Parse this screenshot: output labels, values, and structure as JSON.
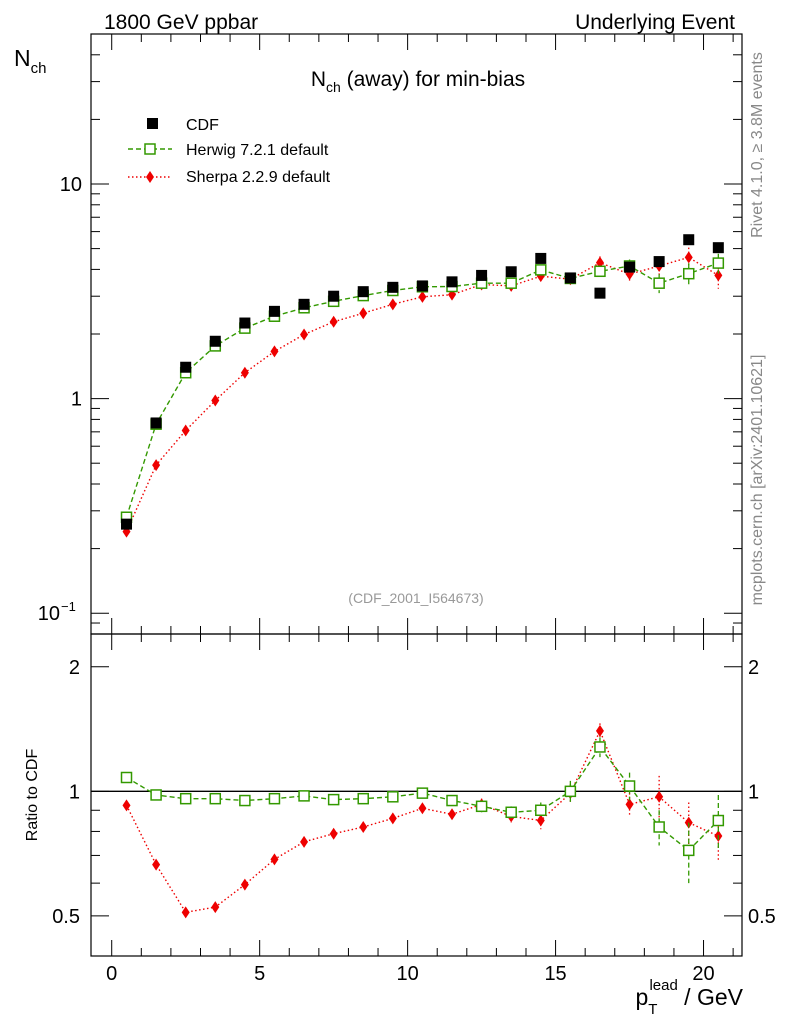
{
  "header": {
    "left": "1800 GeV ppbar",
    "right": "Underlying Event"
  },
  "side_labels": {
    "rivet": "Rivet 4.1.0, ≥ 3.8M events",
    "mcplots": "mcplots.cern.ch [arXiv:2401.10621]"
  },
  "chart_data": [
    {
      "type": "scatter",
      "panel": "main",
      "title_main": "N",
      "title_sub": "ch",
      "title_rest": " (away) for min-bias",
      "ylabel_main": "N",
      "ylabel_sub": "ch",
      "yscale": "log",
      "ylim": [
        0.08,
        50
      ],
      "xlim": [
        -0.7,
        21.3
      ],
      "y_ticks": [
        {
          "v": 10,
          "main": "10",
          "exp": ""
        },
        {
          "v": 1,
          "main": "1",
          "exp": ""
        },
        {
          "v": 0.1,
          "main": "10",
          "exp": "−1"
        }
      ],
      "watermark": "(CDF_2001_I564673)",
      "legend_position": "top-left",
      "x": [
        0.5,
        1.5,
        2.5,
        3.5,
        4.5,
        5.5,
        6.5,
        7.5,
        8.5,
        9.5,
        10.5,
        11.5,
        12.5,
        13.5,
        14.5,
        15.5,
        16.5,
        17.5,
        18.5,
        19.5,
        20.5
      ],
      "series": [
        {
          "name": "CDF",
          "style": "data",
          "color": "#000000",
          "values": [
            0.26,
            0.77,
            1.4,
            1.85,
            2.25,
            2.55,
            2.75,
            3.0,
            3.15,
            3.3,
            3.35,
            3.5,
            3.75,
            3.9,
            4.5,
            3.65,
            3.1,
            4.1,
            4.35,
            5.5,
            5.05
          ]
        },
        {
          "name": "Herwig 7.2.1 default",
          "style": "herwig",
          "color": "#339900",
          "values": [
            0.28,
            0.76,
            1.32,
            1.76,
            2.13,
            2.42,
            2.65,
            2.84,
            3.02,
            3.19,
            3.32,
            3.33,
            3.45,
            3.45,
            3.98,
            3.63,
            3.92,
            4.15,
            3.45,
            3.82,
            4.28
          ],
          "errors": [
            0,
            0,
            0,
            0,
            0,
            0,
            0,
            0,
            0,
            0,
            0,
            0,
            0,
            0,
            0.12,
            0.15,
            0.2,
            0.3,
            0.35,
            0.45,
            0.45
          ]
        },
        {
          "name": "Sherpa 2.2.9 default",
          "style": "sherpa",
          "color": "#ee0000",
          "values": [
            0.24,
            0.49,
            0.71,
            0.98,
            1.32,
            1.66,
            1.99,
            2.28,
            2.5,
            2.75,
            2.98,
            3.05,
            3.4,
            3.35,
            3.72,
            3.6,
            4.3,
            3.8,
            4.15,
            4.55,
            3.75
          ],
          "errors": [
            0,
            0,
            0,
            0,
            0,
            0,
            0,
            0,
            0,
            0,
            0,
            0,
            0.1,
            0.12,
            0.15,
            0.2,
            0.3,
            0.3,
            0.4,
            0.5,
            0.5
          ]
        }
      ]
    },
    {
      "type": "scatter",
      "panel": "ratio",
      "ylabel": "Ratio to CDF",
      "xlabel_main": "p",
      "xlabel_sub": "T",
      "xlabel_sup": "lead",
      "xlabel_rest": " / GeV",
      "yscale": "log",
      "ylim": [
        0.4,
        2.4
      ],
      "xlim": [
        -0.7,
        21.3
      ],
      "reference_line": 1,
      "y_ticks": [
        {
          "v": 2,
          "label": "2"
        },
        {
          "v": 1,
          "label": "1"
        },
        {
          "v": 0.5,
          "label": "0.5"
        }
      ],
      "x_ticks": [
        0,
        5,
        10,
        15,
        20
      ],
      "x": [
        0.5,
        1.5,
        2.5,
        3.5,
        4.5,
        5.5,
        6.5,
        7.5,
        8.5,
        9.5,
        10.5,
        11.5,
        12.5,
        13.5,
        14.5,
        15.5,
        16.5,
        17.5,
        18.5,
        19.5,
        20.5
      ],
      "series": [
        {
          "name": "Herwig 7.2.1 default",
          "style": "herwig",
          "color": "#339900",
          "values": [
            1.08,
            0.98,
            0.96,
            0.96,
            0.95,
            0.96,
            0.975,
            0.955,
            0.96,
            0.97,
            0.99,
            0.95,
            0.92,
            0.89,
            0.9,
            1.0,
            1.28,
            1.03,
            0.82,
            0.72,
            0.85
          ],
          "errors": [
            0,
            0,
            0,
            0,
            0,
            0,
            0,
            0,
            0,
            0,
            0,
            0,
            0.03,
            0.03,
            0.04,
            0.06,
            0.07,
            0.08,
            0.08,
            0.12,
            0.13
          ]
        },
        {
          "name": "Sherpa 2.2.9 default",
          "style": "sherpa",
          "color": "#ee0000",
          "values": [
            0.925,
            0.665,
            0.51,
            0.525,
            0.595,
            0.685,
            0.755,
            0.79,
            0.82,
            0.86,
            0.91,
            0.88,
            0.93,
            0.87,
            0.85,
            0.99,
            1.4,
            0.93,
            0.97,
            0.84,
            0.78
          ],
          "errors": [
            0,
            0,
            0,
            0,
            0,
            0,
            0,
            0,
            0,
            0,
            0,
            0,
            0.03,
            0.03,
            0.04,
            0.05,
            0.06,
            0.06,
            0.12,
            0.1,
            0.1
          ]
        }
      ]
    }
  ]
}
